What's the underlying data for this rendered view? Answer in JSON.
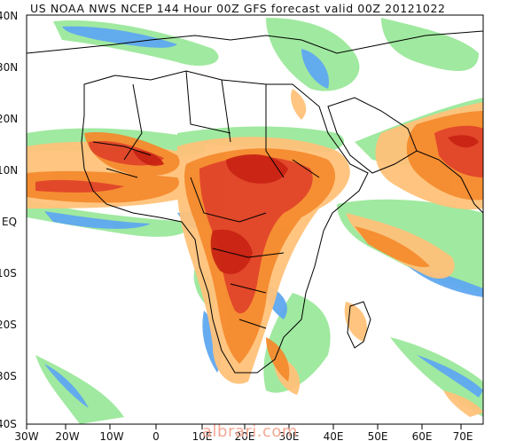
{
  "title": "US NOAA NWS NCEP 144 Hour 00Z GFS forecast valid 00Z 20121022",
  "lat_labels": [
    "40N",
    "30N",
    "20N",
    "10N",
    "EQ",
    "10S",
    "20S",
    "30S",
    "40S"
  ],
  "lon_labels": [
    "30W",
    "20W",
    "10W",
    "0",
    "10E",
    "20E",
    "30E",
    "40E",
    "50E",
    "60E",
    "70E"
  ],
  "watermark": "albrari.com",
  "colors": {
    "background": "#ffffff",
    "coast": "#000000",
    "precip_light_green": "#9be89b",
    "precip_green": "#55c455",
    "precip_blue": "#5fa8f0",
    "precip_light_orange": "#ffc27a",
    "precip_orange": "#f58b2e",
    "precip_red": "#e0452a",
    "precip_dark_red": "#c82414"
  }
}
